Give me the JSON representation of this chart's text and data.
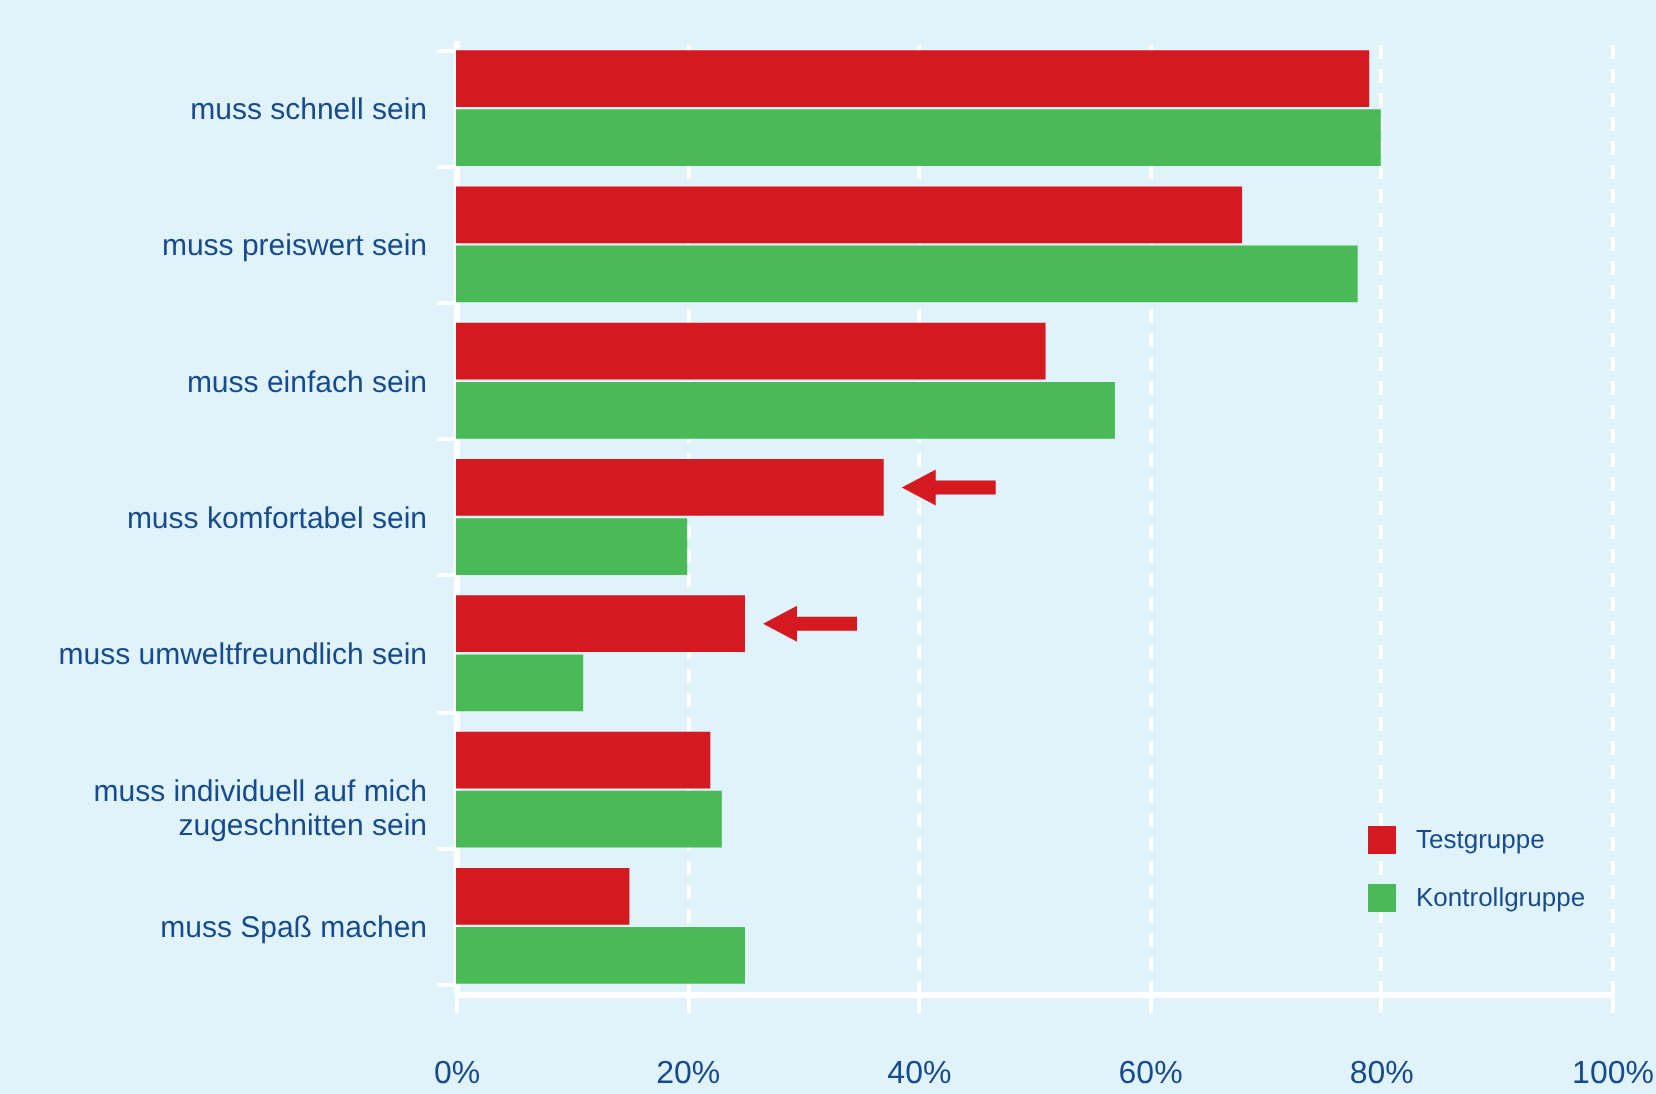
{
  "chart_data": {
    "type": "bar",
    "orientation": "horizontal",
    "categories": [
      "muss schnell sein",
      "muss preiswert sein",
      "muss einfach sein",
      "muss komfortabel sein",
      "muss umweltfreundlich sein",
      "muss individuell auf mich zugeschnitten sein",
      "muss Spaß machen"
    ],
    "series": [
      {
        "name": "Testgruppe",
        "color": "#d51920",
        "values": [
          79,
          68,
          51,
          37,
          25,
          22,
          15
        ]
      },
      {
        "name": "Kontrollgruppe",
        "color": "#4ab957",
        "values": [
          80,
          78,
          57,
          20,
          11,
          23,
          25
        ]
      }
    ],
    "xlim": [
      0,
      100
    ],
    "xticks": [
      {
        "value": 0,
        "label": "0%"
      },
      {
        "value": 20,
        "label": "20%"
      },
      {
        "value": 40,
        "label": "40%"
      },
      {
        "value": 60,
        "label": "60%"
      },
      {
        "value": 80,
        "label": "80%"
      },
      {
        "value": 100,
        "label": "100%"
      }
    ],
    "grid": "x",
    "legend": "bottom right"
  }
}
